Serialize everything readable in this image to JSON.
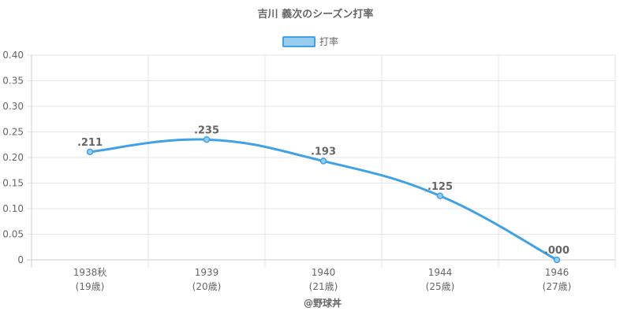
{
  "chart_data": {
    "type": "line",
    "title": "吉川 義次のシーズン打率",
    "legend_position": "top",
    "series": [
      {
        "name": "打率",
        "color": "#3fa2e6",
        "fill": "#99cdf0",
        "values": [
          0.211,
          0.235,
          0.193,
          0.125,
          0.0
        ],
        "labels": [
          ".211",
          ".235",
          ".193",
          ".125",
          ".000"
        ]
      }
    ],
    "categories": [
      "1938秋",
      "1939",
      "1940",
      "1944",
      "1946"
    ],
    "category_sublabels": [
      "(19歳)",
      "(20歳)",
      "(21歳)",
      "(25歳)",
      "(27歳)"
    ],
    "ylim": [
      0,
      0.4
    ],
    "yticks": [
      "0",
      "0.05",
      "0.10",
      "0.15",
      "0.20",
      "0.25",
      "0.30",
      "0.35",
      "0.40"
    ],
    "grid": true,
    "credit": "@野球丼"
  }
}
